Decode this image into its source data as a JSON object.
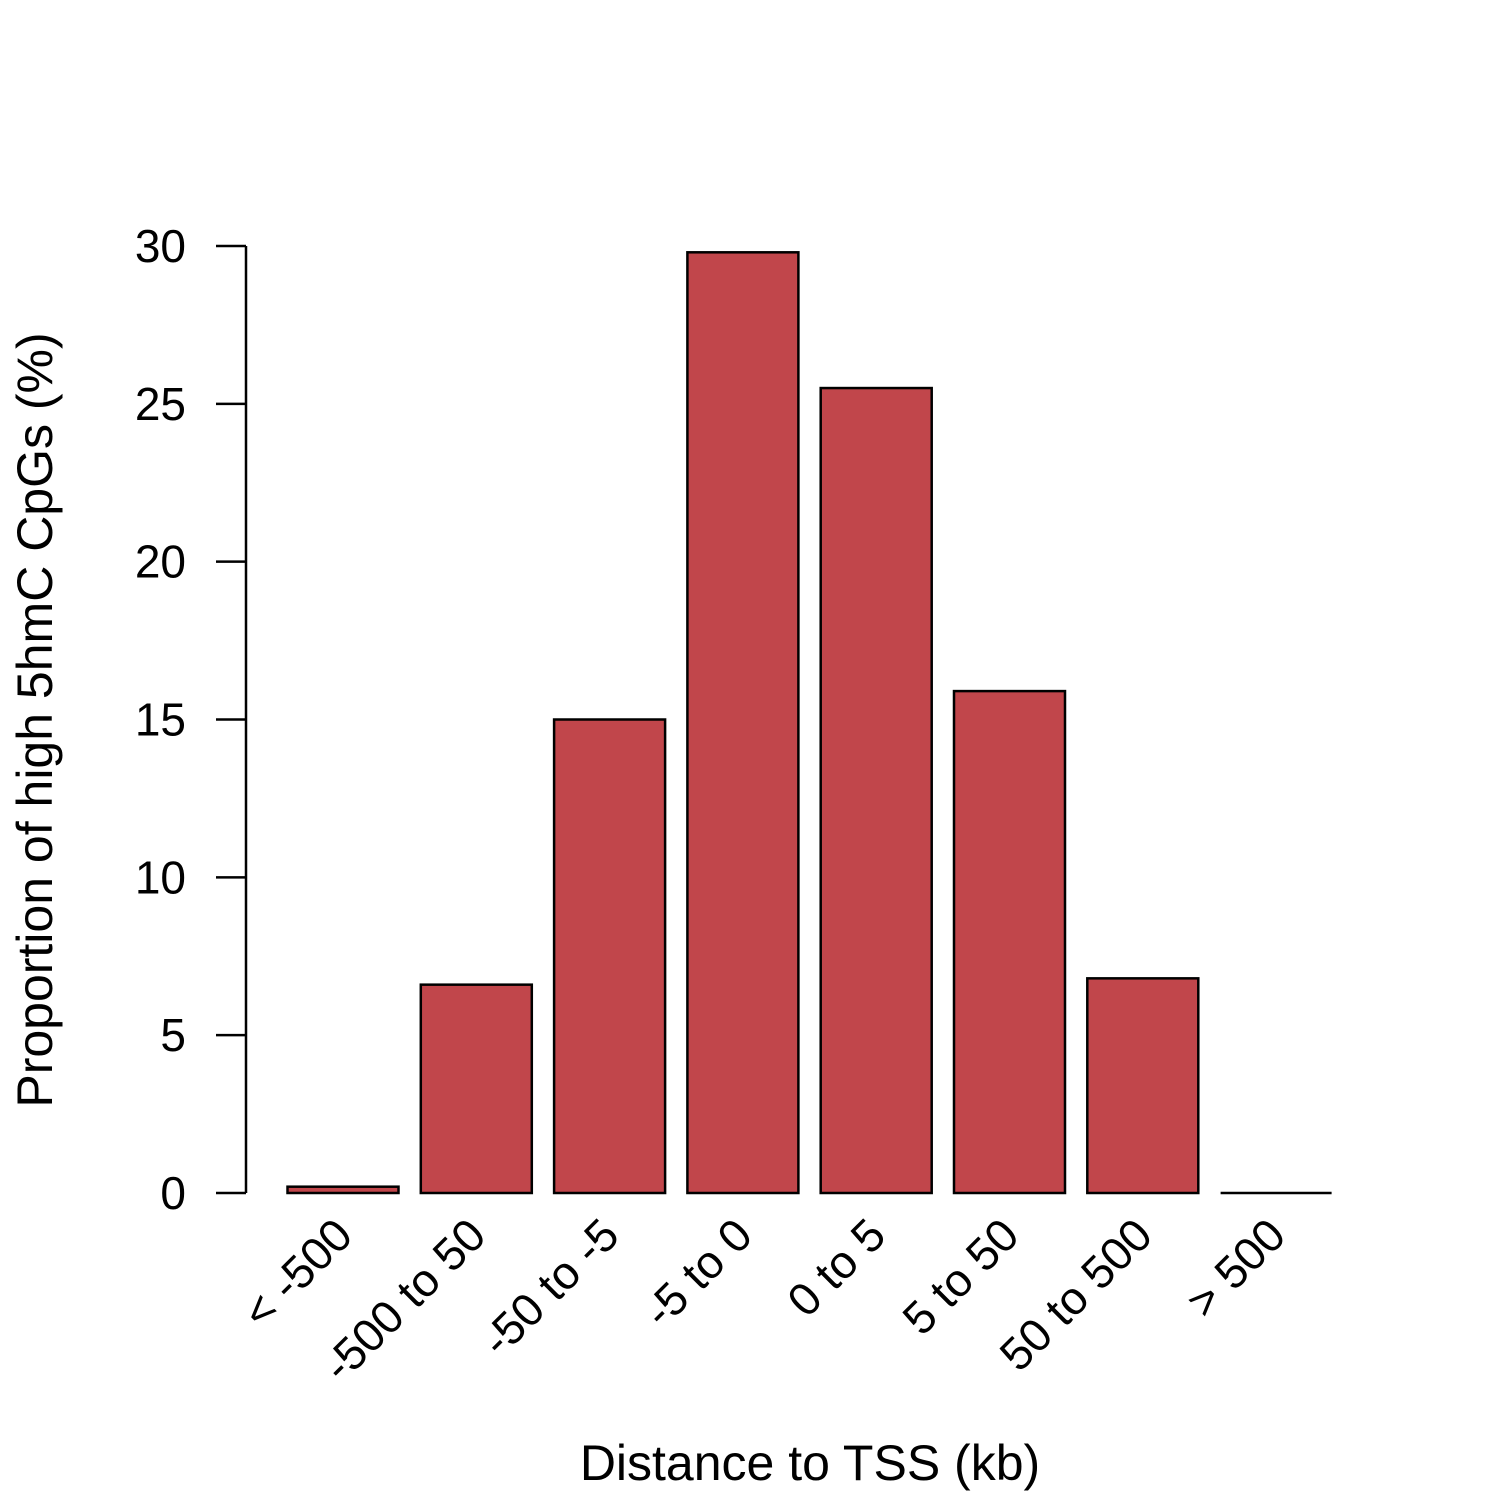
{
  "chart_data": {
    "type": "bar",
    "categories": [
      "< -500",
      "-500 to 50",
      "-50 to -5",
      "-5 to 0",
      "0 to 5",
      "5 to 50",
      "50 to 500",
      "> 500"
    ],
    "values": [
      0.2,
      6.6,
      15.0,
      29.8,
      25.5,
      15.9,
      6.8,
      0.0
    ],
    "xlabel": "Distance to TSS (kb)",
    "ylabel": "Proportion of high 5hmC CpGs (%)",
    "ylim": [
      0,
      30
    ],
    "yticks": [
      "0",
      "5",
      "10",
      "15",
      "20",
      "25",
      "30"
    ],
    "grid": false,
    "legend": "none",
    "colors": {
      "bar": "#c1464b",
      "edge": "#000000"
    }
  }
}
